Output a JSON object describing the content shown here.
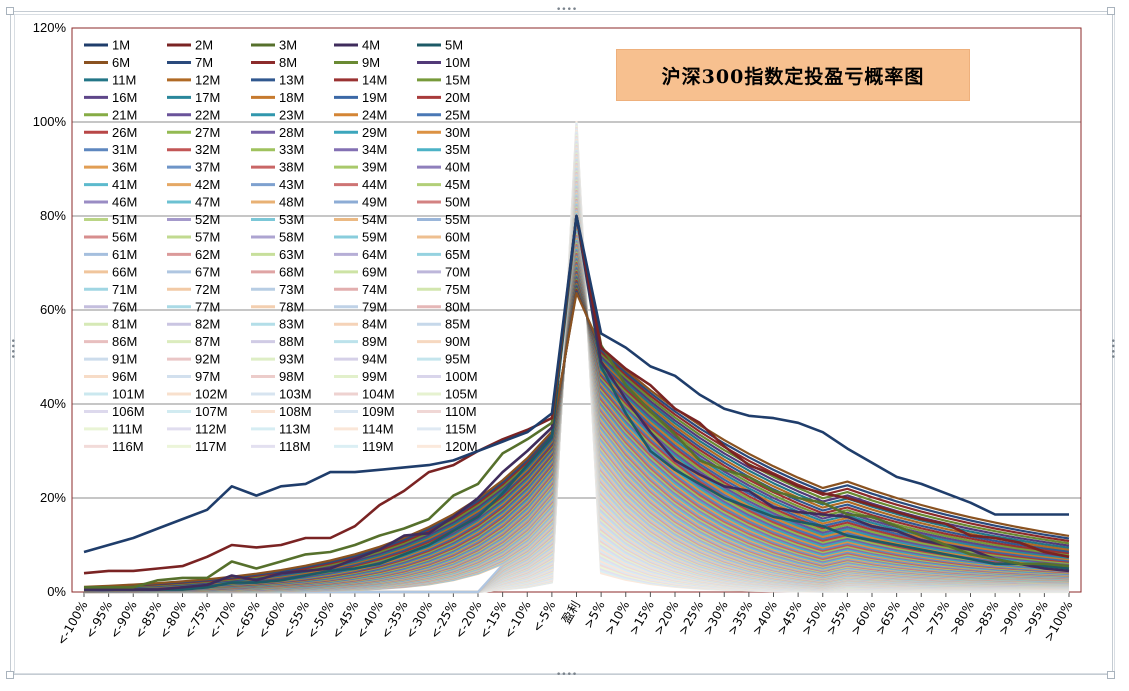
{
  "chart_data": {
    "type": "line",
    "title": "沪深300指数定投盈亏概率图",
    "xlabel": "",
    "ylabel": "",
    "ylim": [
      0,
      1.2
    ],
    "y_ticks": [
      "0%",
      "20%",
      "40%",
      "60%",
      "80%",
      "100%",
      "120%"
    ],
    "categories": [
      "<-100%",
      "<-95%",
      "<-90%",
      "<-85%",
      "<-80%",
      "<-75%",
      "<-70%",
      "<-65%",
      "<-60%",
      "<-55%",
      "<-50%",
      "<-45%",
      "<-40%",
      "<-35%",
      "<-30%",
      "<-25%",
      "<-20%",
      "<-15%",
      "<-10%",
      "<-5%",
      "盈利",
      ">5%",
      ">10%",
      ">15%",
      ">20%",
      ">25%",
      ">30%",
      ">35%",
      ">40%",
      ">45%",
      ">50%",
      ">55%",
      ">60%",
      ">65%",
      ">70%",
      ">75%",
      ">80%",
      ">85%",
      ">90%",
      ">95%",
      ">100%"
    ],
    "grid": true,
    "legend_position": "top-left",
    "series_names": [
      "1M",
      "2M",
      "3M",
      "4M",
      "5M",
      "6M",
      "7M",
      "8M",
      "9M",
      "10M",
      "11M",
      "12M",
      "13M",
      "14M",
      "15M",
      "16M",
      "17M",
      "18M",
      "19M",
      "20M",
      "21M",
      "22M",
      "23M",
      "24M",
      "25M",
      "26M",
      "27M",
      "28M",
      "29M",
      "30M",
      "31M",
      "32M",
      "33M",
      "34M",
      "35M",
      "36M",
      "37M",
      "38M",
      "39M",
      "40M",
      "41M",
      "42M",
      "43M",
      "44M",
      "45M",
      "46M",
      "47M",
      "48M",
      "49M",
      "50M",
      "51M",
      "52M",
      "53M",
      "54M",
      "55M",
      "56M",
      "57M",
      "58M",
      "59M",
      "60M",
      "61M",
      "62M",
      "63M",
      "64M",
      "65M",
      "66M",
      "67M",
      "68M",
      "69M",
      "70M",
      "71M",
      "72M",
      "73M",
      "74M",
      "75M",
      "76M",
      "77M",
      "78M",
      "79M",
      "80M",
      "81M",
      "82M",
      "83M",
      "84M",
      "85M",
      "86M",
      "87M",
      "88M",
      "89M",
      "90M",
      "91M",
      "92M",
      "93M",
      "94M",
      "95M",
      "96M",
      "97M",
      "98M",
      "99M",
      "100M",
      "101M",
      "102M",
      "103M",
      "104M",
      "105M",
      "106M",
      "107M",
      "108M",
      "109M",
      "110M",
      "111M",
      "112M",
      "113M",
      "114M",
      "115M",
      "116M",
      "117M",
      "118M",
      "119M",
      "120M"
    ],
    "series_colors": [
      "#1f3d6b",
      "#7a2323",
      "#56702c",
      "#3f2c5c",
      "#1d5a66",
      "#8a5220",
      "#2a4a7c",
      "#8c2b2b",
      "#6a8a33",
      "#523a78",
      "#237687",
      "#b06a25",
      "#30588f",
      "#9a3232",
      "#779a3a",
      "#5e4689",
      "#2a879b",
      "#c67a2e",
      "#3b68a6",
      "#a83b3b",
      "#86ac45",
      "#6a539a",
      "#3197ad",
      "#d48535",
      "#4a78b5",
      "#b84747",
      "#93ba52",
      "#7661a7",
      "#3ca6bc",
      "#dc9243",
      "#5e87bf",
      "#c25656",
      "#9fc25e",
      "#8370b3",
      "#4cb2c6",
      "#e19e54",
      "#6e95c8",
      "#c96666",
      "#a9c96b",
      "#8f7fbc",
      "#5cbacd",
      "#e5a865",
      "#7ea1cf",
      "#ce7474",
      "#b2cf78",
      "#9a8cc4",
      "#6cc1d2",
      "#e8b174",
      "#8dacd5",
      "#d38282",
      "#bad585",
      "#a499cb",
      "#7bc7d7",
      "#ebb983",
      "#9ab6da",
      "#d78e8e",
      "#c1da90",
      "#ada4d1",
      "#89cddc",
      "#eebf90",
      "#a5bfde",
      "#db9a9a",
      "#c7df9b",
      "#b6aed6",
      "#95d2e0",
      "#f0c59c",
      "#afc6e1",
      "#dfa4a4",
      "#cde3a5",
      "#bdb6da",
      "#a0d6e3",
      "#f2caa6",
      "#b7cde4",
      "#e2aeae",
      "#d2e6ae",
      "#c4bede",
      "#aadae6",
      "#f3cfb0",
      "#bfd2e7",
      "#e5b7b7",
      "#d6e9b6",
      "#cac5e2",
      "#b3dee8",
      "#f5d3b8",
      "#c6d8ea",
      "#e8bfbf",
      "#dbecbe",
      "#d0cbe5",
      "#bce2eb",
      "#f6d8c0",
      "#ccdcec",
      "#eac6c6",
      "#deeec5",
      "#d5d0e8",
      "#c4e5ed",
      "#f7dcc7",
      "#d2e0ee",
      "#ecccca",
      "#e2f0cb",
      "#d9d5eb",
      "#cbe8ef",
      "#f8e0cd",
      "#d7e4f0",
      "#eed2d0",
      "#e6f2d0",
      "#ddd9ed",
      "#d1ebf1",
      "#f9e3d3",
      "#dbe7f2",
      "#f0d7d5",
      "#e9f4d5",
      "#e0ddef",
      "#d6edf3",
      "#fae6d8",
      "#dfe9f3",
      "#f2dbd9",
      "#ecf5d9",
      "#e3e0f0",
      "#dbeff4",
      "#fbe9dc"
    ],
    "series_highlight": [
      {
        "name": "1M",
        "values": [
          0.085,
          0.1,
          0.115,
          0.135,
          0.155,
          0.175,
          0.225,
          0.205,
          0.225,
          0.23,
          0.255,
          0.255,
          0.26,
          0.265,
          0.27,
          0.28,
          0.3,
          0.32,
          0.34,
          0.38,
          0.8,
          0.55,
          0.52,
          0.48,
          0.46,
          0.42,
          0.39,
          0.375,
          0.37,
          0.36,
          0.34,
          0.305,
          0.275,
          0.245,
          0.23,
          0.21,
          0.19,
          0.165,
          0.165,
          0.165,
          0.165
        ]
      },
      {
        "name": "2M",
        "values": [
          0.04,
          0.045,
          0.045,
          0.05,
          0.055,
          0.075,
          0.1,
          0.095,
          0.1,
          0.115,
          0.115,
          0.14,
          0.185,
          0.215,
          0.255,
          0.27,
          0.3,
          0.325,
          0.345,
          0.37,
          0.8,
          0.52,
          0.475,
          0.44,
          0.39,
          0.36,
          0.31,
          0.27,
          0.25,
          0.225,
          0.21,
          0.2,
          0.185,
          0.17,
          0.155,
          0.145,
          0.12,
          0.115,
          0.105,
          0.085,
          0.075
        ]
      },
      {
        "name": "3M",
        "values": [
          0.01,
          0.01,
          0.01,
          0.025,
          0.03,
          0.03,
          0.065,
          0.05,
          0.065,
          0.08,
          0.085,
          0.1,
          0.12,
          0.135,
          0.155,
          0.205,
          0.23,
          0.295,
          0.325,
          0.36,
          0.8,
          0.525,
          0.44,
          0.385,
          0.335,
          0.28,
          0.26,
          0.245,
          0.215,
          0.2,
          0.19,
          0.165,
          0.16,
          0.14,
          0.12,
          0.1,
          0.08,
          0.07,
          0.06,
          0.06,
          0.055
        ]
      },
      {
        "name": "4M",
        "values": [
          0.005,
          0.005,
          0.005,
          0.005,
          0.01,
          0.015,
          0.035,
          0.025,
          0.04,
          0.045,
          0.05,
          0.07,
          0.09,
          0.12,
          0.125,
          0.16,
          0.2,
          0.255,
          0.3,
          0.35,
          0.8,
          0.49,
          0.41,
          0.34,
          0.28,
          0.25,
          0.225,
          0.215,
          0.18,
          0.17,
          0.165,
          0.16,
          0.14,
          0.13,
          0.11,
          0.1,
          0.09,
          0.07,
          0.06,
          0.05,
          0.045
        ]
      },
      {
        "name": "5M",
        "values": [
          0.005,
          0.005,
          0.005,
          0.005,
          0.005,
          0.01,
          0.02,
          0.02,
          0.025,
          0.035,
          0.045,
          0.05,
          0.06,
          0.08,
          0.1,
          0.13,
          0.16,
          0.21,
          0.27,
          0.33,
          0.8,
          0.48,
          0.38,
          0.3,
          0.26,
          0.23,
          0.2,
          0.18,
          0.16,
          0.15,
          0.14,
          0.12,
          0.11,
          0.1,
          0.09,
          0.08,
          0.07,
          0.06,
          0.06,
          0.055,
          0.05
        ]
      }
    ],
    "background_series_note": "Remaining series (6M–120M) converge near 0% on loss side, peak near 100% at 盈利 and decay toward low values; drawn as a dense fan of colored lines."
  }
}
